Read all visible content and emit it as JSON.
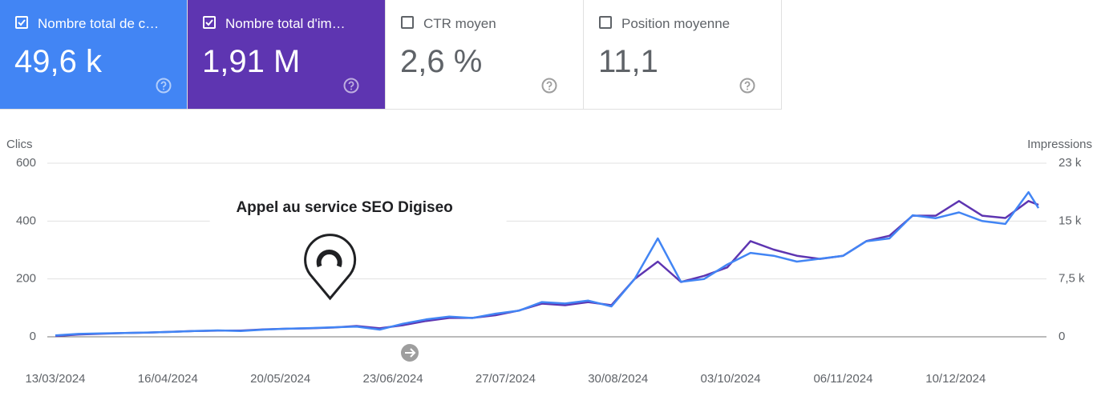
{
  "cards": [
    {
      "label": "Nombre total de c…",
      "value": "49,6 k",
      "checked": true,
      "color": "#4285f4"
    },
    {
      "label": "Nombre total d'im…",
      "value": "1,91 M",
      "checked": true,
      "color": "#5e35b1"
    },
    {
      "label": "CTR moyen",
      "value": "2,6 %",
      "checked": false,
      "color": "#ffffff"
    },
    {
      "label": "Position moyenne",
      "value": "11,1",
      "checked": false,
      "color": "#ffffff"
    }
  ],
  "chart_data": {
    "type": "line",
    "y_label": "Clics",
    "y2_label": "Impressions",
    "x": [
      "13/03/2024",
      "20/03/2024",
      "27/03/2024",
      "03/04/2024",
      "10/04/2024",
      "17/04/2024",
      "24/04/2024",
      "01/05/2024",
      "08/05/2024",
      "15/05/2024",
      "22/05/2024",
      "29/05/2024",
      "05/06/2024",
      "12/06/2024",
      "19/06/2024",
      "26/06/2024",
      "03/07/2024",
      "10/07/2024",
      "17/07/2024",
      "24/07/2024",
      "31/07/2024",
      "07/08/2024",
      "14/08/2024",
      "21/08/2024",
      "28/08/2024",
      "04/09/2024",
      "11/09/2024",
      "18/09/2024",
      "25/09/2024",
      "02/10/2024",
      "09/10/2024",
      "16/10/2024",
      "23/10/2024",
      "30/10/2024",
      "06/11/2024",
      "13/11/2024",
      "20/11/2024",
      "27/11/2024",
      "04/12/2024",
      "11/12/2024",
      "18/12/2024",
      "25/12/2024",
      "01/01/2025",
      "04/01/2025"
    ],
    "series": [
      {
        "color": "#5e35b1",
        "axis": "y2",
        "values": [
          100,
          300,
          400,
          500,
          550,
          650,
          750,
          800,
          800,
          950,
          1050,
          1100,
          1200,
          1400,
          1100,
          1500,
          2050,
          2450,
          2450,
          2800,
          3400,
          4300,
          4100,
          4500,
          4100,
          7500,
          9750,
          7100,
          7900,
          9000,
          12400,
          11300,
          10500,
          10100,
          10500,
          12400,
          13100,
          15700,
          15700,
          17600,
          15700,
          15400,
          17600,
          17100
        ]
      },
      {
        "color": "#4285f4",
        "values": [
          5,
          10,
          12,
          13,
          15,
          17,
          20,
          22,
          20,
          25,
          28,
          30,
          33,
          35,
          25,
          45,
          60,
          70,
          65,
          80,
          90,
          120,
          115,
          125,
          105,
          200,
          340,
          190,
          200,
          250,
          290,
          280,
          260,
          270,
          280,
          330,
          340,
          420,
          410,
          430,
          400,
          390,
          500,
          445
        ]
      }
    ],
    "ylim": [
      0,
      600
    ],
    "yticks": [
      0,
      200,
      400,
      600
    ],
    "y2lim": [
      0,
      22500
    ],
    "y2ticks": [
      0,
      {
        "value": 7500,
        "label": "7,5 k"
      },
      {
        "value": 15000,
        "label": "15 k"
      },
      {
        "value": 22500,
        "label": "23 k"
      }
    ],
    "xticks": [
      "13/03/2024",
      "16/04/2024",
      "20/05/2024",
      "23/06/2024",
      "27/07/2024",
      "30/08/2024",
      "03/10/2024",
      "06/11/2024",
      "10/12/2024"
    ],
    "grid": true,
    "annotation": {
      "text": "Appel au service SEO Digiseo",
      "x": "04/06/2024"
    }
  }
}
